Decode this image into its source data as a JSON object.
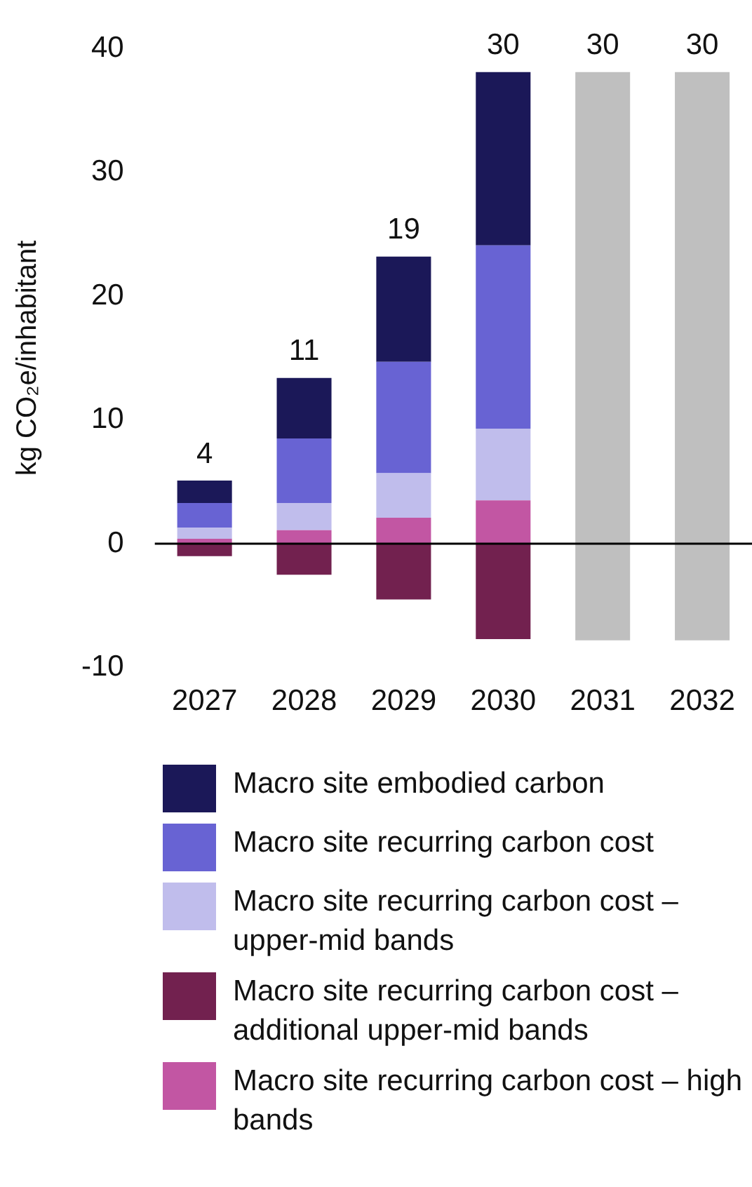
{
  "chart_data": {
    "type": "bar",
    "stacked": true,
    "ylabel": "kg CO₂e/inhabitant",
    "categories": [
      "2027",
      "2028",
      "2029",
      "2030",
      "2031",
      "2032"
    ],
    "ylim": [
      -10,
      40
    ],
    "yticks": [
      -10,
      0,
      10,
      20,
      30,
      40
    ],
    "grid": false,
    "legend": "bottom",
    "totals": [
      "4",
      "11",
      "19",
      "30",
      "30",
      "30"
    ],
    "ref_lines": [
      {
        "axis": "y",
        "value": 0,
        "color": "#000000"
      }
    ],
    "series": [
      {
        "name": "Macro site recurring carbon cost – high bands",
        "color": "#c256a3",
        "values": [
          0.4,
          1.1,
          2.1,
          3.5,
          null,
          null
        ]
      },
      {
        "name": "Macro site recurring carbon cost – additional upper-mid bands",
        "color": "#72214f",
        "values": [
          -1.0,
          -2.5,
          -4.5,
          -7.7,
          null,
          null
        ]
      },
      {
        "name": "Macro site recurring carbon cost – upper-mid bands",
        "color": "#c0bdec",
        "values": [
          0.9,
          2.2,
          3.6,
          5.8,
          null,
          null
        ]
      },
      {
        "name": "Macro site recurring carbon cost",
        "color": "#6863d3",
        "values": [
          2.0,
          5.2,
          9.0,
          14.8,
          null,
          null
        ]
      },
      {
        "name": "Macro site embodied carbon",
        "color": "#1b1858",
        "values": [
          1.8,
          4.9,
          8.5,
          14.0,
          null,
          null
        ]
      },
      {
        "color": "#bfbfbf",
        "values": [
          null,
          null,
          null,
          null,
          38.1,
          38.1
        ]
      },
      {
        "color": "#bfbfbf",
        "values": [
          null,
          null,
          null,
          null,
          -7.8,
          -7.8
        ]
      }
    ]
  }
}
